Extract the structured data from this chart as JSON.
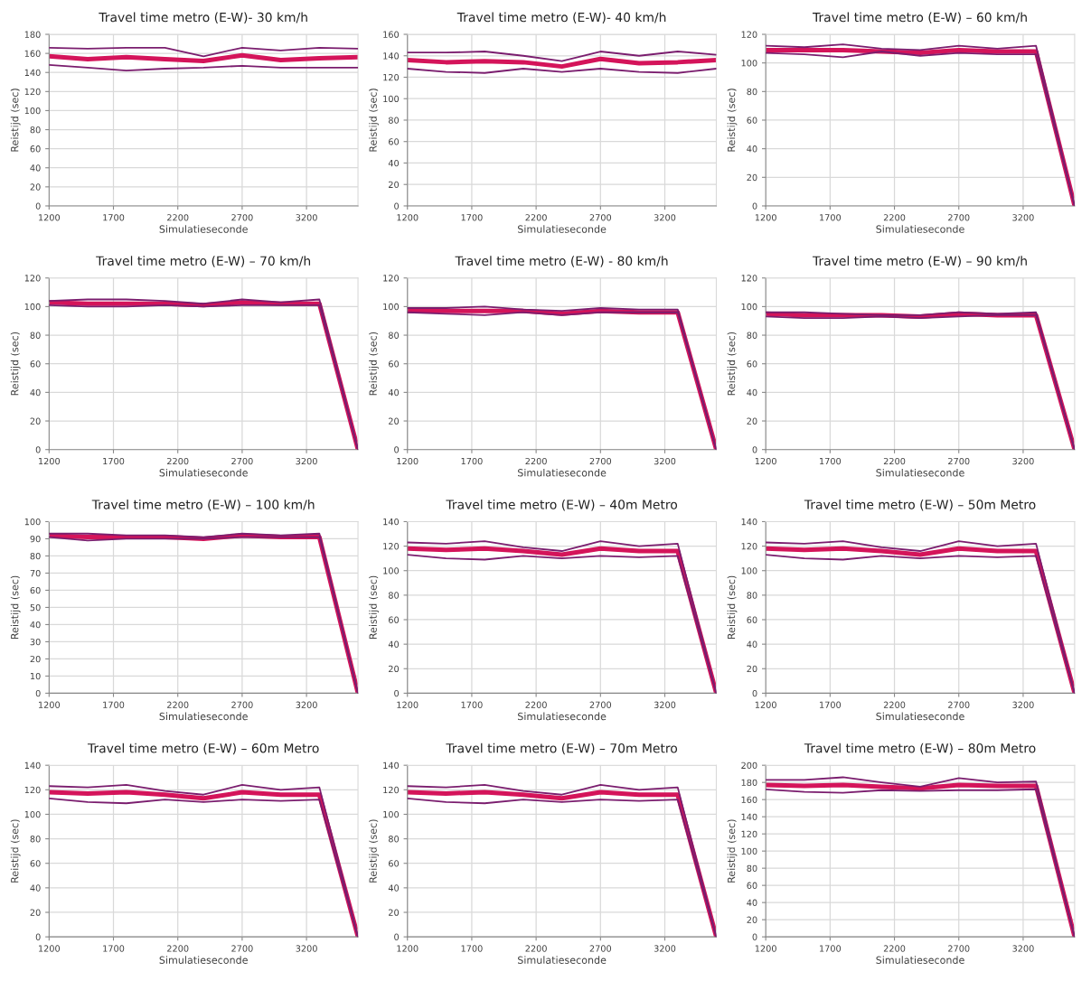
{
  "chart_data": [
    {
      "type": "line",
      "title": "Travel time metro (E-W)- 30 km/h",
      "xlabel": "Simulatieseconde",
      "ylabel": "Reistijd (sec)",
      "x": [
        1200,
        1500,
        1800,
        2100,
        2400,
        2700,
        3000,
        3300,
        3600
      ],
      "xlim": [
        1200,
        3600
      ],
      "xticks": [
        1200,
        1700,
        2200,
        2700,
        3200
      ],
      "ylim": [
        0,
        180
      ],
      "yticks": [
        0,
        20,
        40,
        60,
        80,
        100,
        120,
        140,
        160,
        180
      ],
      "grid": true,
      "marker": "none",
      "series": [
        {
          "color": "#7a1d6e",
          "values": [
            166,
            165,
            166,
            166,
            157,
            166,
            163,
            166,
            165
          ]
        },
        {
          "color": "#d4145a",
          "values": [
            157,
            154,
            156,
            154,
            152,
            158,
            153,
            155,
            156
          ]
        },
        {
          "color": "#7a1d6e",
          "values": [
            148,
            145,
            142,
            144,
            145,
            147,
            145,
            145,
            145
          ]
        }
      ]
    },
    {
      "type": "line",
      "title": "Travel time metro (E-W)- 40 km/h",
      "xlabel": "Simulatieseconde",
      "ylabel": "Reistijd (sec)",
      "x": [
        1200,
        1500,
        1800,
        2100,
        2400,
        2700,
        3000,
        3300,
        3600
      ],
      "xlim": [
        1200,
        3600
      ],
      "xticks": [
        1200,
        1700,
        2200,
        2700,
        3200
      ],
      "ylim": [
        0,
        160
      ],
      "yticks": [
        0,
        20,
        40,
        60,
        80,
        100,
        120,
        140,
        160
      ],
      "grid": true,
      "marker": "none",
      "series": [
        {
          "color": "#7a1d6e",
          "values": [
            143,
            143,
            144,
            140,
            135,
            144,
            140,
            144,
            141
          ]
        },
        {
          "color": "#d4145a",
          "values": [
            136,
            134,
            135,
            134,
            130,
            137,
            133,
            134,
            136
          ]
        },
        {
          "color": "#7a1d6e",
          "values": [
            128,
            125,
            124,
            128,
            125,
            128,
            125,
            124,
            128
          ]
        }
      ]
    },
    {
      "type": "line",
      "title": "Travel time metro (E-W) – 60 km/h",
      "xlabel": "Simulatieseconde",
      "ylabel": "Reistijd (sec)",
      "x": [
        1200,
        1500,
        1800,
        2100,
        2400,
        2700,
        3000,
        3300,
        3600
      ],
      "xlim": [
        1200,
        3600
      ],
      "xticks": [
        1200,
        1700,
        2200,
        2700,
        3200
      ],
      "ylim": [
        0,
        120
      ],
      "yticks": [
        0,
        20,
        40,
        60,
        80,
        100,
        120
      ],
      "grid": true,
      "marker": "none",
      "series": [
        {
          "color": "#7a1d6e",
          "values": [
            112,
            111,
            113,
            110,
            109,
            112,
            110,
            112,
            0
          ]
        },
        {
          "color": "#d4145a",
          "values": [
            109,
            109,
            109,
            108,
            107,
            109,
            108,
            108,
            0
          ]
        },
        {
          "color": "#7a1d6e",
          "values": [
            107,
            106,
            104,
            108,
            105,
            107,
            106,
            106,
            0
          ]
        }
      ]
    },
    {
      "type": "line",
      "title": "Travel time metro (E-W) – 70 km/h",
      "xlabel": "Simulatieseconde",
      "ylabel": "Reistijd (sec)",
      "x": [
        1200,
        1500,
        1800,
        2100,
        2400,
        2700,
        3000,
        3300,
        3600
      ],
      "xlim": [
        1200,
        3600
      ],
      "xticks": [
        1200,
        1700,
        2200,
        2700,
        3200
      ],
      "ylim": [
        0,
        120
      ],
      "yticks": [
        0,
        20,
        40,
        60,
        80,
        100,
        120
      ],
      "grid": true,
      "marker": "none",
      "series": [
        {
          "color": "#7a1d6e",
          "values": [
            104,
            105,
            105,
            104,
            102,
            105,
            103,
            105,
            0
          ]
        },
        {
          "color": "#d4145a",
          "values": [
            103,
            102,
            102,
            102,
            101,
            103,
            102,
            102,
            0
          ]
        },
        {
          "color": "#7a1d6e",
          "values": [
            101,
            100,
            100,
            101,
            100,
            101,
            101,
            101,
            0
          ]
        }
      ]
    },
    {
      "type": "line",
      "title": "Travel time metro (E-W) - 80 km/h",
      "xlabel": "Simulatieseconde",
      "ylabel": "Reistijd (sec)",
      "x": [
        1200,
        1500,
        1800,
        2100,
        2400,
        2700,
        3000,
        3300,
        3600
      ],
      "xlim": [
        1200,
        3600
      ],
      "xticks": [
        1200,
        1700,
        2200,
        2700,
        3200
      ],
      "ylim": [
        0,
        120
      ],
      "yticks": [
        0,
        20,
        40,
        60,
        80,
        100,
        120
      ],
      "grid": true,
      "marker": "none",
      "series": [
        {
          "color": "#7a1d6e",
          "values": [
            99,
            99,
            100,
            98,
            97,
            99,
            98,
            98,
            0
          ]
        },
        {
          "color": "#d4145a",
          "values": [
            97,
            97,
            97,
            97,
            95,
            97,
            96,
            96,
            0
          ]
        },
        {
          "color": "#7a1d6e",
          "values": [
            96,
            95,
            94,
            96,
            94,
            96,
            96,
            96,
            0
          ]
        }
      ]
    },
    {
      "type": "line",
      "title": "Travel time metro (E-W) – 90 km/h",
      "xlabel": "Simulatieseconde",
      "ylabel": "Reistijd (sec)",
      "x": [
        1200,
        1500,
        1800,
        2100,
        2400,
        2700,
        3000,
        3300,
        3600
      ],
      "xlim": [
        1200,
        3600
      ],
      "xticks": [
        1200,
        1700,
        2200,
        2700,
        3200
      ],
      "ylim": [
        0,
        120
      ],
      "yticks": [
        0,
        20,
        40,
        60,
        80,
        100,
        120
      ],
      "grid": true,
      "marker": "none",
      "series": [
        {
          "color": "#7a1d6e",
          "values": [
            96,
            96,
            95,
            94,
            94,
            96,
            95,
            96,
            0
          ]
        },
        {
          "color": "#d4145a",
          "values": [
            95,
            94,
            94,
            94,
            93,
            95,
            94,
            94,
            0
          ]
        },
        {
          "color": "#7a1d6e",
          "values": [
            93,
            92,
            92,
            93,
            92,
            93,
            94,
            94,
            0
          ]
        }
      ]
    },
    {
      "type": "line",
      "title": "Travel time metro (E-W) – 100 km/h",
      "xlabel": "Simulatieseconde",
      "ylabel": "Reistijd (sec)",
      "x": [
        1200,
        1500,
        1800,
        2100,
        2400,
        2700,
        3000,
        3300,
        3600
      ],
      "xlim": [
        1200,
        3600
      ],
      "xticks": [
        1200,
        1700,
        2200,
        2700,
        3200
      ],
      "ylim": [
        0,
        100
      ],
      "yticks": [
        0,
        10,
        20,
        30,
        40,
        50,
        60,
        70,
        80,
        90,
        100
      ],
      "grid": true,
      "marker": "none",
      "series": [
        {
          "color": "#7a1d6e",
          "values": [
            93,
            93,
            92,
            92,
            91,
            93,
            92,
            93,
            0
          ]
        },
        {
          "color": "#d4145a",
          "values": [
            92,
            91,
            91,
            91,
            90,
            92,
            91,
            91,
            0
          ]
        },
        {
          "color": "#7a1d6e",
          "values": [
            91,
            89,
            90,
            90,
            90,
            91,
            91,
            91,
            0
          ]
        }
      ]
    },
    {
      "type": "line",
      "title": "Travel time metro (E-W) – 40m Metro",
      "xlabel": "Simulatieseconde",
      "ylabel": "Reistijd (sec)",
      "x": [
        1200,
        1500,
        1800,
        2100,
        2400,
        2700,
        3000,
        3300,
        3600
      ],
      "xlim": [
        1200,
        3600
      ],
      "xticks": [
        1200,
        1700,
        2200,
        2700,
        3200
      ],
      "ylim": [
        0,
        140
      ],
      "yticks": [
        0,
        20,
        40,
        60,
        80,
        100,
        120,
        140
      ],
      "grid": true,
      "marker": "none",
      "series": [
        {
          "color": "#7a1d6e",
          "values": [
            123,
            122,
            124,
            119,
            116,
            124,
            120,
            122,
            0
          ]
        },
        {
          "color": "#d4145a",
          "values": [
            118,
            117,
            118,
            116,
            113,
            118,
            116,
            116,
            0
          ]
        },
        {
          "color": "#7a1d6e",
          "values": [
            113,
            110,
            109,
            112,
            110,
            112,
            111,
            112,
            0
          ]
        }
      ]
    },
    {
      "type": "line",
      "title": "Travel time metro (E-W) – 50m Metro",
      "xlabel": "Simulatieseconde",
      "ylabel": "Reistijd (sec)",
      "x": [
        1200,
        1500,
        1800,
        2100,
        2400,
        2700,
        3000,
        3300,
        3600
      ],
      "xlim": [
        1200,
        3600
      ],
      "xticks": [
        1200,
        1700,
        2200,
        2700,
        3200
      ],
      "ylim": [
        0,
        140
      ],
      "yticks": [
        0,
        20,
        40,
        60,
        80,
        100,
        120,
        140
      ],
      "grid": true,
      "marker": "none",
      "series": [
        {
          "color": "#7a1d6e",
          "values": [
            123,
            122,
            124,
            119,
            116,
            124,
            120,
            122,
            0
          ]
        },
        {
          "color": "#d4145a",
          "values": [
            118,
            117,
            118,
            116,
            113,
            118,
            116,
            116,
            0
          ]
        },
        {
          "color": "#7a1d6e",
          "values": [
            113,
            110,
            109,
            112,
            110,
            112,
            111,
            112,
            0
          ]
        }
      ]
    },
    {
      "type": "line",
      "title": "Travel time metro (E-W) – 60m Metro",
      "xlabel": "Simulatieseconde",
      "ylabel": "Reistijd (sec)",
      "x": [
        1200,
        1500,
        1800,
        2100,
        2400,
        2700,
        3000,
        3300,
        3600
      ],
      "xlim": [
        1200,
        3600
      ],
      "xticks": [
        1200,
        1700,
        2200,
        2700,
        3200
      ],
      "ylim": [
        0,
        140
      ],
      "yticks": [
        0,
        20,
        40,
        60,
        80,
        100,
        120,
        140
      ],
      "grid": true,
      "marker": "none",
      "series": [
        {
          "color": "#7a1d6e",
          "values": [
            123,
            122,
            124,
            119,
            116,
            124,
            120,
            122,
            0
          ]
        },
        {
          "color": "#d4145a",
          "values": [
            118,
            117,
            118,
            116,
            113,
            118,
            116,
            116,
            0
          ]
        },
        {
          "color": "#7a1d6e",
          "values": [
            113,
            110,
            109,
            112,
            110,
            112,
            111,
            112,
            0
          ]
        }
      ]
    },
    {
      "type": "line",
      "title": "Travel time metro (E-W) – 70m Metro",
      "xlabel": "Simulatieseconde",
      "ylabel": "Reistijd (sec)",
      "x": [
        1200,
        1500,
        1800,
        2100,
        2400,
        2700,
        3000,
        3300,
        3600
      ],
      "xlim": [
        1200,
        3600
      ],
      "xticks": [
        1200,
        1700,
        2200,
        2700,
        3200
      ],
      "ylim": [
        0,
        140
      ],
      "yticks": [
        0,
        20,
        40,
        60,
        80,
        100,
        120,
        140
      ],
      "grid": true,
      "marker": "none",
      "series": [
        {
          "color": "#7a1d6e",
          "values": [
            123,
            122,
            124,
            119,
            116,
            124,
            120,
            122,
            0
          ]
        },
        {
          "color": "#d4145a",
          "values": [
            118,
            117,
            118,
            116,
            113,
            118,
            116,
            116,
            0
          ]
        },
        {
          "color": "#7a1d6e",
          "values": [
            113,
            110,
            109,
            112,
            110,
            112,
            111,
            112,
            0
          ]
        }
      ]
    },
    {
      "type": "line",
      "title": "Travel time metro (E-W) – 80m Metro",
      "xlabel": "Simulatieseconde",
      "ylabel": "Reistijd (sec)",
      "x": [
        1200,
        1500,
        1800,
        2100,
        2400,
        2700,
        3000,
        3300,
        3600
      ],
      "xlim": [
        1200,
        3600
      ],
      "xticks": [
        1200,
        1700,
        2200,
        2700,
        3200
      ],
      "ylim": [
        0,
        200
      ],
      "yticks": [
        0,
        20,
        40,
        60,
        80,
        100,
        120,
        140,
        160,
        180,
        200
      ],
      "grid": true,
      "marker": "none",
      "series": [
        {
          "color": "#7a1d6e",
          "values": [
            183,
            183,
            186,
            180,
            175,
            185,
            180,
            181,
            0
          ]
        },
        {
          "color": "#d4145a",
          "values": [
            177,
            176,
            177,
            175,
            173,
            177,
            176,
            176,
            0
          ]
        },
        {
          "color": "#7a1d6e",
          "values": [
            172,
            169,
            168,
            171,
            170,
            171,
            171,
            172,
            0
          ]
        }
      ]
    }
  ]
}
